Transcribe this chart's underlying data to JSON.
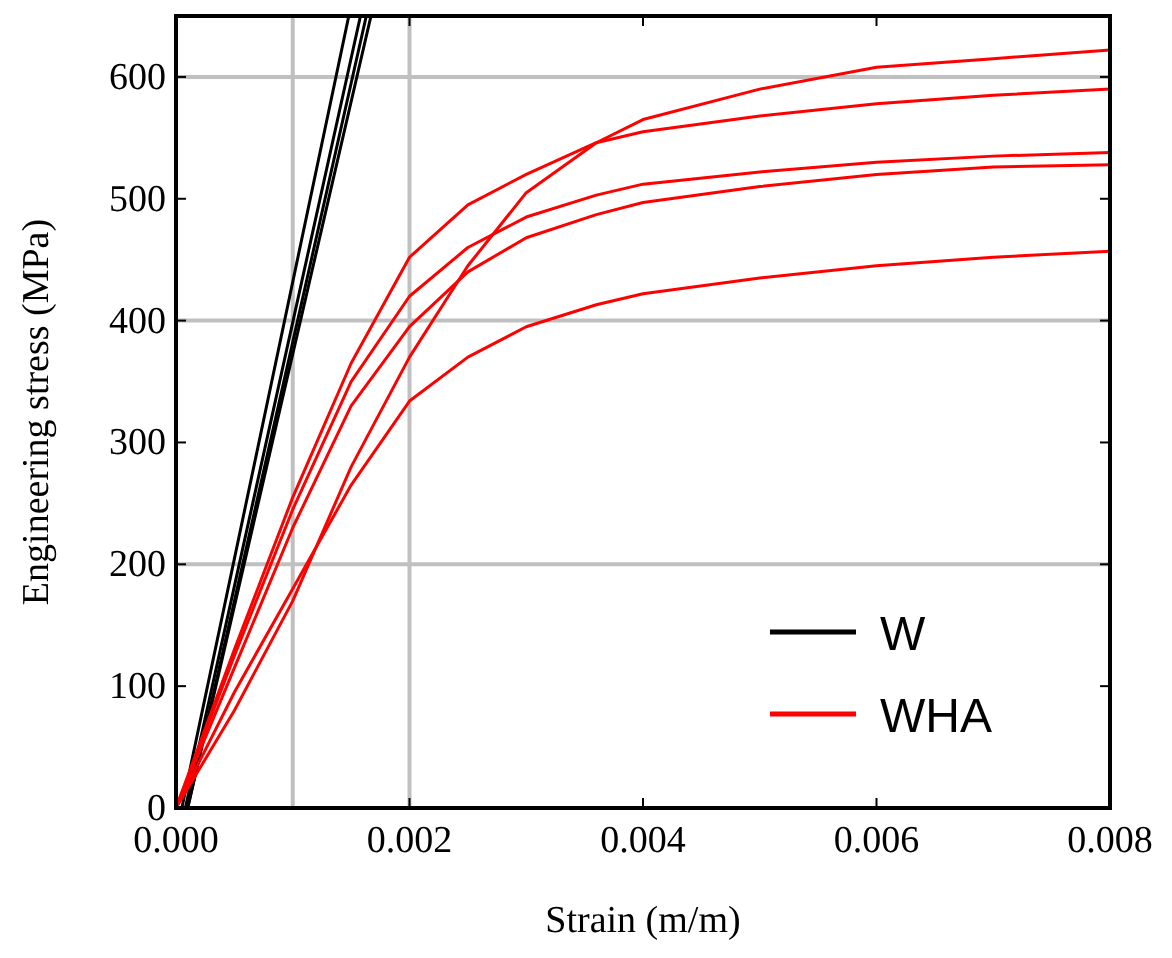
{
  "chart_data": {
    "type": "line",
    "xlabel": "Strain (m/m)",
    "ylabel": "Engineering stress (MPa)",
    "xlim": [
      0,
      0.008
    ],
    "ylim": [
      0,
      650
    ],
    "xticks": [
      {
        "value": 0,
        "label": "0.000"
      },
      {
        "value": 0.002,
        "label": "0.002"
      },
      {
        "value": 0.004,
        "label": "0.004"
      },
      {
        "value": 0.006,
        "label": "0.006"
      },
      {
        "value": 0.008,
        "label": "0.008"
      }
    ],
    "yticks": [
      0,
      100,
      200,
      300,
      400,
      500,
      600
    ],
    "grid": false,
    "legend": "bottom right",
    "marker": "none",
    "line_style": "solid",
    "ref_lines": [
      {
        "axis": "x",
        "value": 0.001,
        "color": "#c0c0c0"
      },
      {
        "axis": "x",
        "value": 0.002,
        "color": "#c0c0c0"
      },
      {
        "axis": "y",
        "value": 200,
        "color": "#c0c0c0"
      },
      {
        "axis": "y",
        "value": 400,
        "color": "#c0c0c0"
      },
      {
        "axis": "y",
        "value": 600,
        "color": "#c0c0c0"
      }
    ],
    "series": [
      {
        "name": "W",
        "color": "#000000",
        "x": [
          0,
          5e-05,
          0.00148
        ],
        "values": [
          0,
          0,
          650
        ]
      },
      {
        "color": "#000000",
        "x": [
          0,
          8e-05,
          0.00158
        ],
        "values": [
          0,
          0,
          650
        ]
      },
      {
        "color": "#000000",
        "x": [
          0,
          0.0001,
          0.00163
        ],
        "values": [
          0,
          0,
          650
        ]
      },
      {
        "color": "#000000",
        "x": [
          0,
          0.0001,
          0.00167
        ],
        "values": [
          0,
          0,
          650
        ]
      },
      {
        "name": "WHA",
        "color": "#ff0000",
        "x": [
          0,
          0.0005,
          0.001,
          0.0015,
          0.002,
          0.0025,
          0.003,
          0.0036,
          0.004,
          0.005,
          0.006,
          0.007,
          0.008
        ],
        "values": [
          0,
          80,
          170,
          280,
          370,
          445,
          505,
          546,
          565,
          590,
          608,
          615,
          622
        ]
      },
      {
        "color": "#ff0000",
        "x": [
          0,
          0.0005,
          0.001,
          0.0015,
          0.002,
          0.0025,
          0.003,
          0.0036,
          0.004,
          0.005,
          0.006,
          0.007,
          0.008
        ],
        "values": [
          0,
          130,
          255,
          365,
          452,
          495,
          520,
          546,
          555,
          568,
          578,
          585,
          590
        ]
      },
      {
        "color": "#ff0000",
        "x": [
          0,
          0.0005,
          0.001,
          0.0015,
          0.002,
          0.0025,
          0.003,
          0.0036,
          0.004,
          0.005,
          0.006,
          0.007,
          0.008
        ],
        "values": [
          0,
          125,
          245,
          350,
          420,
          460,
          485,
          503,
          512,
          522,
          530,
          535,
          538
        ]
      },
      {
        "color": "#ff0000",
        "x": [
          0,
          0.0005,
          0.001,
          0.0015,
          0.002,
          0.0025,
          0.003,
          0.0036,
          0.004,
          0.005,
          0.006,
          0.007,
          0.008
        ],
        "values": [
          0,
          115,
          230,
          330,
          395,
          440,
          468,
          487,
          497,
          510,
          520,
          526,
          528
        ]
      },
      {
        "color": "#ff0000",
        "x": [
          0,
          0.0005,
          0.001,
          0.0015,
          0.002,
          0.0025,
          0.003,
          0.0036,
          0.004,
          0.005,
          0.006,
          0.007,
          0.008
        ],
        "values": [
          0,
          95,
          180,
          265,
          334,
          370,
          395,
          413,
          422,
          435,
          445,
          452,
          457
        ]
      }
    ]
  }
}
